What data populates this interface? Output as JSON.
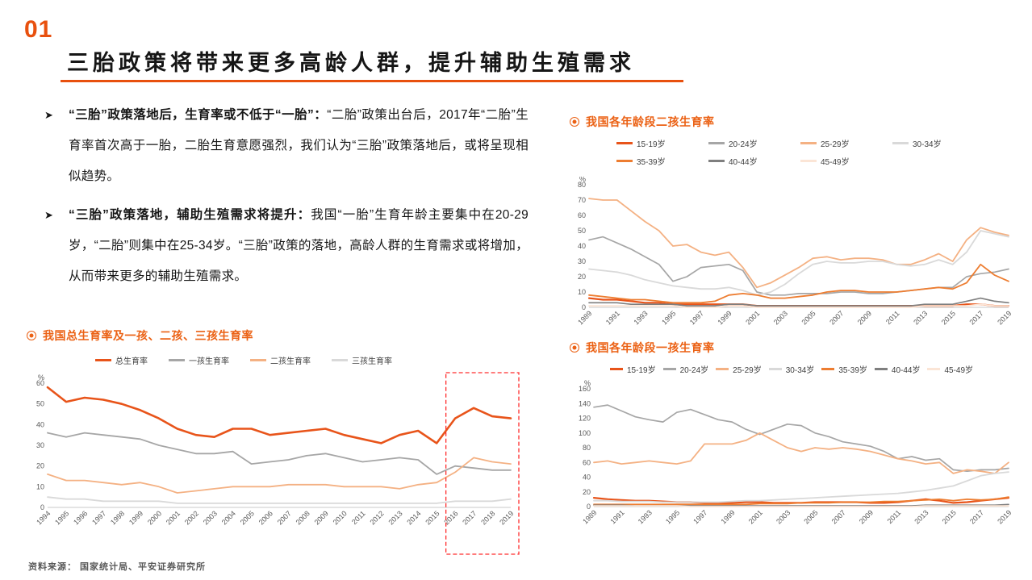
{
  "slide": {
    "number": "01",
    "title": "三胎政策将带来更多高龄人群，提升辅助生殖需求",
    "source": "资料来源：  国家统计局、平安证券研究所",
    "accent_color": "#E8500E"
  },
  "bullets": [
    {
      "lead": "“三胎”政策落地后，生育率或不低于“一胎”：",
      "body": "“二胎”政策出台后，2017年“二胎”生育率首次高于一胎，二胎生育意愿强烈，我们认为“三胎”政策落地后，或将呈现相似趋势。"
    },
    {
      "lead": "“三胎”政策落地，辅助生殖需求将提升：",
      "body": "我国“一胎”生育年龄主要集中在20-29岁，“二胎”则集中在25-34岁。“三胎”政策的落地，高龄人群的生育需求或将增加，从而带来更多的辅助生殖需求。"
    }
  ],
  "chart_data": [
    {
      "id": "second-child-by-age",
      "type": "line",
      "title": "我国各年龄段二孩生育率",
      "ylabel": "%",
      "ylim": [
        0,
        80
      ],
      "y_step": 10,
      "legend_position": "top",
      "label_every": 2,
      "x_labels": [
        "1989",
        "1990",
        "1991",
        "1992",
        "1993",
        "1994",
        "1995",
        "1996",
        "1997",
        "1998",
        "1999",
        "2000",
        "2001",
        "2002",
        "2003",
        "2004",
        "2005",
        "2006",
        "2007",
        "2008",
        "2009",
        "2010",
        "2011",
        "2012",
        "2013",
        "2014",
        "2015",
        "2016",
        "2017",
        "2018",
        "2019"
      ],
      "series": [
        {
          "name": "15-19岁",
          "color": "#E8541A",
          "width": 2.2,
          "values": [
            6,
            5,
            5,
            4,
            3,
            3,
            2,
            2,
            2,
            2,
            2,
            2,
            1,
            1,
            1,
            1,
            1,
            1,
            1,
            1,
            1,
            1,
            1,
            1,
            1,
            1,
            1,
            2,
            2,
            1,
            1
          ]
        },
        {
          "name": "20-24岁",
          "color": "#A6A6A6",
          "width": 1.7,
          "values": [
            44,
            46,
            42,
            38,
            33,
            28,
            17,
            20,
            26,
            27,
            28,
            24,
            10,
            8,
            8,
            9,
            9,
            9,
            10,
            10,
            9,
            9,
            10,
            11,
            12,
            13,
            13,
            20,
            22,
            23,
            25
          ]
        },
        {
          "name": "25-29岁",
          "color": "#F4B183",
          "width": 1.8,
          "values": [
            71,
            70,
            70,
            63,
            56,
            50,
            40,
            41,
            36,
            34,
            36,
            26,
            13,
            16,
            21,
            26,
            32,
            33,
            31,
            32,
            32,
            31,
            28,
            28,
            31,
            35,
            30,
            44,
            52,
            49,
            47
          ]
        },
        {
          "name": "30-34岁",
          "color": "#D9D9D9",
          "width": 1.8,
          "values": [
            25,
            24,
            23,
            21,
            18,
            16,
            14,
            13,
            12,
            12,
            13,
            11,
            8,
            10,
            15,
            22,
            28,
            30,
            29,
            29,
            30,
            30,
            28,
            27,
            28,
            31,
            28,
            36,
            50,
            48,
            46
          ]
        },
        {
          "name": "35-39岁",
          "color": "#ED7D31",
          "width": 1.8,
          "values": [
            8,
            7,
            6,
            5,
            5,
            4,
            3,
            3,
            3,
            4,
            8,
            9,
            8,
            6,
            6,
            7,
            8,
            10,
            11,
            11,
            10,
            10,
            10,
            11,
            12,
            13,
            12,
            16,
            28,
            21,
            17
          ]
        },
        {
          "name": "40-44岁",
          "color": "#7F7F7F",
          "width": 1.7,
          "values": [
            3,
            3,
            3,
            2,
            2,
            2,
            2,
            1,
            1,
            1,
            2,
            2,
            1,
            1,
            1,
            1,
            1,
            1,
            1,
            1,
            1,
            1,
            1,
            1,
            2,
            2,
            2,
            4,
            6,
            4,
            3
          ]
        },
        {
          "name": "45-49岁",
          "color": "#FBE5D6",
          "width": 1.8,
          "values": [
            1,
            1,
            1,
            1,
            1,
            1,
            1,
            0,
            0,
            0,
            1,
            1,
            0,
            0,
            0,
            0,
            0,
            0,
            0,
            0,
            0,
            0,
            0,
            0,
            1,
            1,
            1,
            1,
            2,
            1,
            1
          ]
        }
      ]
    },
    {
      "id": "total-and-parity",
      "type": "line",
      "title": "我国总生育率及一孩、二孩、三孩生育率",
      "ylabel": "%",
      "ylim": [
        0,
        60
      ],
      "y_step": 10,
      "legend_position": "top",
      "label_every": 1,
      "x_labels": [
        "1994",
        "1995",
        "1996",
        "1997",
        "1998",
        "1999",
        "2000",
        "2001",
        "2002",
        "2003",
        "2004",
        "2005",
        "2006",
        "2007",
        "2008",
        "2009",
        "2010",
        "2011",
        "2012",
        "2013",
        "2014",
        "2015",
        "2016",
        "2017",
        "2018",
        "2019"
      ],
      "highlight": {
        "from": "2016",
        "to": "2019",
        "color": "#FF2D2D"
      },
      "series": [
        {
          "name": "总生育率",
          "color": "#E8541A",
          "width": 2.6,
          "values": [
            58,
            51,
            53,
            52,
            50,
            47,
            43,
            38,
            35,
            34,
            38,
            38,
            35,
            36,
            37,
            38,
            35,
            33,
            31,
            35,
            37,
            31,
            43,
            48,
            44,
            43
          ]
        },
        {
          "name": "一孩生育率",
          "color": "#A6A6A6",
          "width": 1.8,
          "values": [
            36,
            34,
            36,
            35,
            34,
            33,
            30,
            28,
            26,
            26,
            27,
            21,
            22,
            23,
            25,
            26,
            24,
            22,
            23,
            24,
            23,
            16,
            20,
            19,
            18,
            18
          ]
        },
        {
          "name": "二孩生育率",
          "color": "#F4B183",
          "width": 1.8,
          "values": [
            16,
            13,
            13,
            12,
            11,
            12,
            10,
            7,
            8,
            9,
            10,
            10,
            10,
            11,
            11,
            11,
            10,
            10,
            10,
            9,
            11,
            12,
            17,
            24,
            22,
            21
          ]
        },
        {
          "name": "三孩生育率",
          "color": "#D9D9D9",
          "width": 1.8,
          "values": [
            5,
            4,
            4,
            3,
            3,
            3,
            3,
            2,
            2,
            2,
            2,
            2,
            2,
            2,
            2,
            2,
            2,
            2,
            2,
            2,
            2,
            2,
            3,
            3,
            3,
            4
          ]
        }
      ]
    },
    {
      "id": "first-child-by-age",
      "type": "line",
      "title": "我国各年龄段一孩生育率",
      "ylabel": "%",
      "ylim": [
        0,
        160
      ],
      "y_step": 20,
      "legend_position": "top",
      "label_every": 2,
      "x_labels": [
        "1989",
        "1990",
        "1991",
        "1992",
        "1993",
        "1994",
        "1995",
        "1996",
        "1997",
        "1998",
        "1999",
        "2000",
        "2001",
        "2002",
        "2003",
        "2004",
        "2005",
        "2006",
        "2007",
        "2008",
        "2009",
        "2010",
        "2011",
        "2012",
        "2013",
        "2014",
        "2015",
        "2016",
        "2017",
        "2018",
        "2019"
      ],
      "series": [
        {
          "name": "15-19岁",
          "color": "#E8541A",
          "width": 2.2,
          "values": [
            12,
            10,
            9,
            8,
            8,
            7,
            6,
            6,
            5,
            5,
            5,
            6,
            6,
            5,
            5,
            5,
            6,
            6,
            6,
            6,
            5,
            5,
            6,
            8,
            10,
            8,
            5,
            6,
            8,
            10,
            12
          ]
        },
        {
          "name": "20-24岁",
          "color": "#A6A6A6",
          "width": 1.7,
          "values": [
            135,
            138,
            130,
            122,
            118,
            115,
            128,
            132,
            125,
            118,
            115,
            105,
            98,
            105,
            112,
            110,
            100,
            95,
            88,
            85,
            82,
            75,
            65,
            68,
            63,
            65,
            50,
            48,
            50,
            50,
            52
          ]
        },
        {
          "name": "25-29岁",
          "color": "#F4B183",
          "width": 1.8,
          "values": [
            60,
            62,
            58,
            60,
            62,
            60,
            58,
            62,
            85,
            85,
            85,
            90,
            100,
            90,
            80,
            75,
            80,
            78,
            80,
            78,
            75,
            70,
            65,
            62,
            58,
            60,
            45,
            50,
            48,
            45,
            60
          ]
        },
        {
          "name": "30-34岁",
          "color": "#D9D9D9",
          "width": 1.8,
          "values": [
            8,
            8,
            7,
            7,
            7,
            6,
            6,
            6,
            6,
            6,
            7,
            8,
            8,
            9,
            10,
            11,
            12,
            13,
            14,
            15,
            16,
            17,
            18,
            20,
            22,
            25,
            28,
            35,
            42,
            45,
            47
          ]
        },
        {
          "name": "35-39岁",
          "color": "#ED7D31",
          "width": 1.8,
          "values": [
            3,
            3,
            3,
            3,
            3,
            3,
            3,
            3,
            3,
            3,
            3,
            3,
            4,
            4,
            4,
            5,
            5,
            5,
            6,
            6,
            6,
            7,
            7,
            8,
            9,
            10,
            8,
            10,
            9,
            10,
            13
          ]
        },
        {
          "name": "40-44岁",
          "color": "#7F7F7F",
          "width": 1.7,
          "values": [
            2,
            2,
            2,
            1,
            1,
            1,
            1,
            1,
            1,
            1,
            1,
            1,
            1,
            1,
            1,
            1,
            1,
            1,
            1,
            1,
            1,
            1,
            1,
            1,
            2,
            2,
            2,
            2,
            2,
            2,
            3
          ]
        },
        {
          "name": "45-49岁",
          "color": "#FBE5D6",
          "width": 1.8,
          "values": [
            1,
            1,
            1,
            1,
            1,
            1,
            1,
            0,
            0,
            0,
            0,
            0,
            0,
            0,
            0,
            0,
            0,
            0,
            0,
            0,
            0,
            0,
            0,
            0,
            1,
            1,
            1,
            1,
            1,
            1,
            1
          ]
        }
      ]
    }
  ]
}
